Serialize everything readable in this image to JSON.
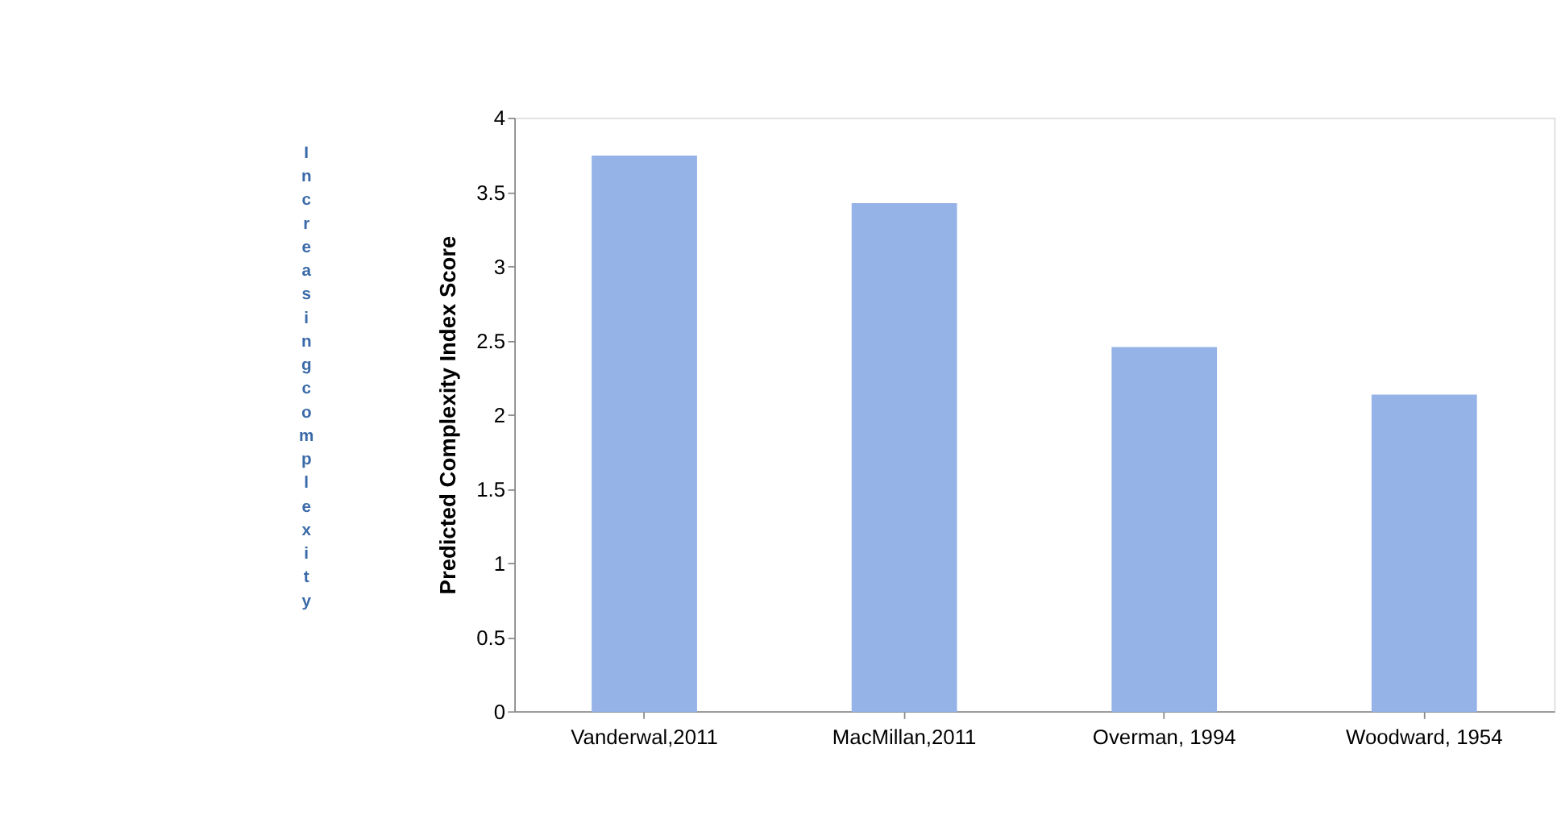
{
  "chart_data": {
    "type": "bar",
    "ylabel": "Predicted Complexity Index Score",
    "categories": [
      "Vanderwal,2011",
      "MacMillan,2011",
      "Overman, 1994",
      "Woodward, 1954"
    ],
    "values": [
      3.74,
      3.42,
      2.45,
      2.13
    ],
    "color": "#95b3e7",
    "ylim": [
      0,
      4
    ],
    "yticks": [
      0,
      0.5,
      1,
      1.5,
      2,
      2.5,
      3,
      3.5,
      4
    ],
    "grid": false,
    "annotations": [
      "Increasing complexity"
    ]
  }
}
